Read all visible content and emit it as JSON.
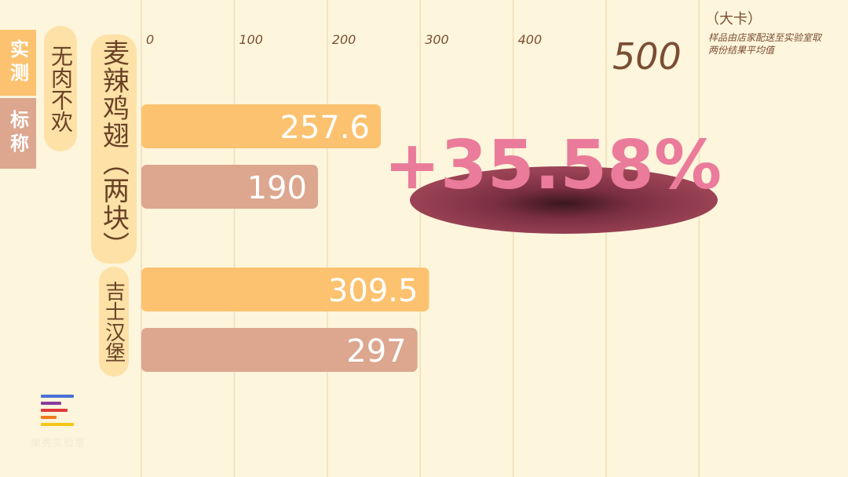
{
  "legend": {
    "measured": "实测",
    "labeled": "标称"
  },
  "tag": "无肉不欢",
  "unit": "（大卡）",
  "note": "样品由店家配送至实验室取两份结果平均值",
  "highlight": "+35.58%",
  "logo_text": "果壳实验室",
  "colors": {
    "background": "#fdf5dc",
    "measured": "#fcc26f",
    "labeled": "#dca68f",
    "highlight_text": "#ea7b9a",
    "highlight_blob": "#9b4355",
    "grid": "#efdfb6",
    "tick": "#7a4e33"
  },
  "chart_data": {
    "type": "bar",
    "orientation": "horizontal",
    "categories": [
      "麦辣鸡翅（两块）",
      "吉士汉堡"
    ],
    "series": [
      {
        "name": "实测",
        "values": [
          257.6,
          309.5
        ]
      },
      {
        "name": "标称",
        "values": [
          190,
          297
        ]
      }
    ],
    "value_labels": [
      [
        "257.6",
        "309.5"
      ],
      [
        "190",
        "297"
      ]
    ],
    "ticks": [
      "0",
      "100",
      "200",
      "300",
      "400",
      "500"
    ],
    "xlim": [
      0,
      600
    ],
    "grid": true,
    "xlabel": "（大卡）"
  }
}
